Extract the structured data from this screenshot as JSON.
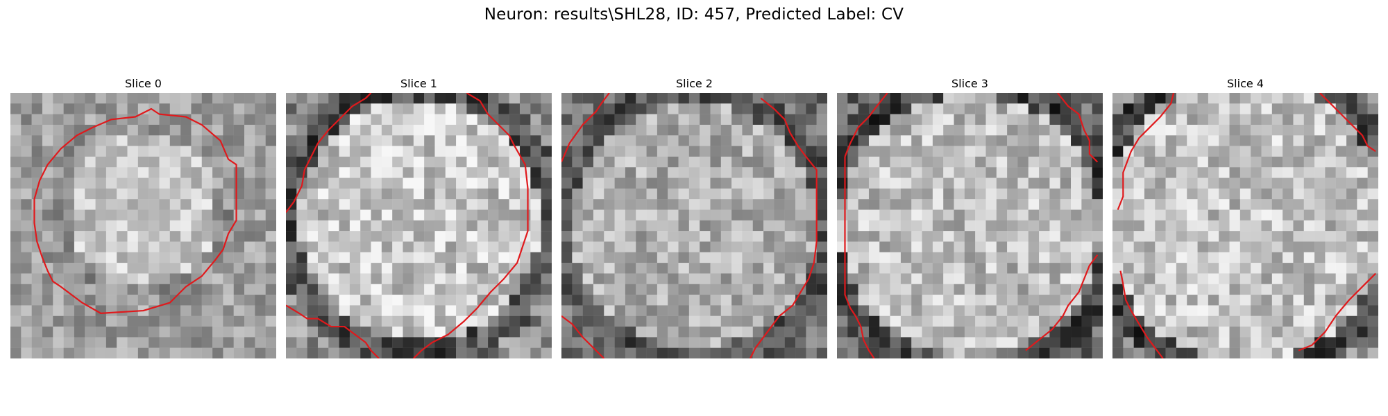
{
  "figure": {
    "title": "Neuron: results\\SHL28, ID: 457, Predicted Label: CV",
    "contour_color": "#e0191c"
  },
  "panels": [
    {
      "title": "Slice 0",
      "slice": 0
    },
    {
      "title": "Slice 1",
      "slice": 1
    },
    {
      "title": "Slice 2",
      "slice": 2
    },
    {
      "title": "Slice 3",
      "slice": 3
    },
    {
      "title": "Slice 4",
      "slice": 4
    }
  ]
}
